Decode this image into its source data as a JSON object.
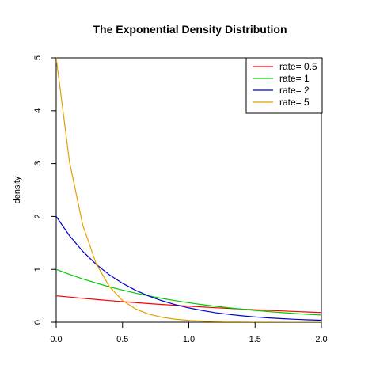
{
  "chart_data": {
    "type": "line",
    "title": "The Exponential Density Distribution",
    "xlabel": "",
    "ylabel": "density",
    "xlim": [
      0,
      2
    ],
    "ylim": [
      0,
      5
    ],
    "x_ticks": [
      "0.0",
      "0.5",
      "1.0",
      "1.5",
      "2.0"
    ],
    "x_tick_values": [
      0,
      0.5,
      1,
      1.5,
      2
    ],
    "y_ticks": [
      "0",
      "1",
      "2",
      "3",
      "4",
      "5"
    ],
    "y_tick_values": [
      0,
      1,
      2,
      3,
      4,
      5
    ],
    "grid": false,
    "legend_position": "top-right",
    "x": [
      0,
      0.1,
      0.2,
      0.3,
      0.4,
      0.5,
      0.6,
      0.7,
      0.8,
      0.9,
      1.0,
      1.1,
      1.2,
      1.3,
      1.4,
      1.5,
      1.6,
      1.7,
      1.8,
      1.9,
      2.0
    ],
    "series": [
      {
        "name": "rate= 0.5",
        "color": "#ff0000",
        "values": [
          0.5,
          0.476,
          0.452,
          0.43,
          0.409,
          0.389,
          0.37,
          0.352,
          0.335,
          0.319,
          0.303,
          0.288,
          0.274,
          0.261,
          0.248,
          0.236,
          0.225,
          0.214,
          0.203,
          0.193,
          0.184
        ]
      },
      {
        "name": "rate= 1",
        "color": "#00cc00",
        "values": [
          1.0,
          0.905,
          0.819,
          0.741,
          0.67,
          0.607,
          0.549,
          0.497,
          0.449,
          0.407,
          0.368,
          0.333,
          0.301,
          0.273,
          0.247,
          0.223,
          0.202,
          0.183,
          0.165,
          0.15,
          0.135
        ]
      },
      {
        "name": "rate= 2",
        "color": "#0000cc",
        "values": [
          2.0,
          1.637,
          1.341,
          1.098,
          0.899,
          0.736,
          0.602,
          0.493,
          0.404,
          0.331,
          0.271,
          0.222,
          0.181,
          0.149,
          0.122,
          0.1,
          0.082,
          0.067,
          0.055,
          0.045,
          0.037
        ]
      },
      {
        "name": "rate= 5",
        "color": "#e5a000",
        "values": [
          5.0,
          3.033,
          1.839,
          1.116,
          0.677,
          0.41,
          0.249,
          0.151,
          0.092,
          0.056,
          0.034,
          0.02,
          0.012,
          0.008,
          0.005,
          0.003,
          0.002,
          0.001,
          0.001,
          0.0,
          0.0
        ]
      }
    ]
  }
}
